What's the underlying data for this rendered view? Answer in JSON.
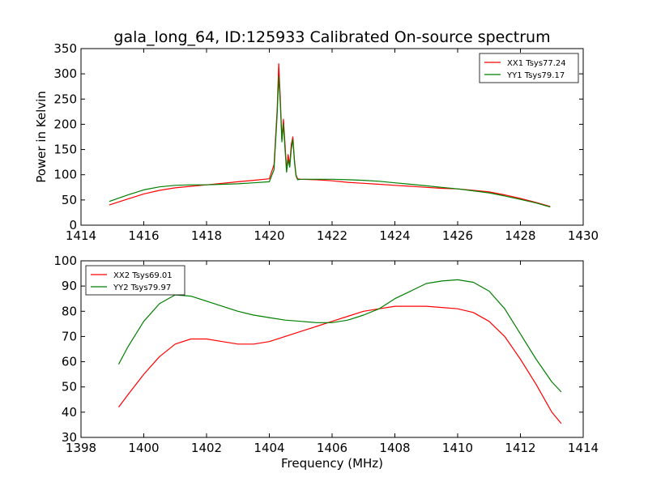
{
  "title": "gala_long_64, ID:125933 Calibrated On-source spectrum",
  "chart_data": [
    {
      "type": "line",
      "ylabel": "Power in Kelvin",
      "xlabel": "",
      "xlim": [
        1414,
        1430
      ],
      "ylim": [
        0,
        350
      ],
      "xticks": [
        "1414",
        "1416",
        "1418",
        "1420",
        "1422",
        "1424",
        "1426",
        "1428",
        "1430"
      ],
      "yticks": [
        "0",
        "50",
        "100",
        "150",
        "200",
        "250",
        "300",
        "350"
      ],
      "legend_position": "top-right",
      "series": [
        {
          "name": "XX1 Tsys77.24",
          "color": "#ff0000",
          "x": [
            1414.9,
            1415.5,
            1416.0,
            1416.5,
            1417.0,
            1417.5,
            1418.0,
            1418.5,
            1419.0,
            1419.5,
            1420.0,
            1420.15,
            1420.25,
            1420.3,
            1420.35,
            1420.4,
            1420.45,
            1420.5,
            1420.55,
            1420.6,
            1420.65,
            1420.7,
            1420.75,
            1420.8,
            1420.85,
            1420.9,
            1421.0,
            1421.5,
            1422.0,
            1422.5,
            1423.0,
            1423.5,
            1424.0,
            1424.5,
            1425.0,
            1425.5,
            1426.0,
            1426.5,
            1427.0,
            1427.5,
            1428.0,
            1428.5,
            1428.95
          ],
          "y": [
            40,
            52,
            62,
            69,
            74,
            77,
            80,
            83,
            86,
            89,
            92,
            120,
            230,
            320,
            250,
            170,
            210,
            160,
            110,
            140,
            120,
            160,
            175,
            130,
            100,
            92,
            91,
            90,
            88,
            85,
            83,
            81,
            79,
            77,
            75,
            73,
            72,
            69,
            66,
            60,
            53,
            45,
            37
          ]
        },
        {
          "name": "YY1 Tsys79.17",
          "color": "#007f00",
          "x": [
            1414.9,
            1415.5,
            1416.0,
            1416.5,
            1417.0,
            1417.5,
            1418.0,
            1418.5,
            1419.0,
            1419.5,
            1420.0,
            1420.15,
            1420.25,
            1420.3,
            1420.35,
            1420.4,
            1420.45,
            1420.5,
            1420.55,
            1420.6,
            1420.65,
            1420.7,
            1420.75,
            1420.8,
            1420.85,
            1420.9,
            1421.0,
            1421.5,
            1422.0,
            1422.5,
            1423.0,
            1423.5,
            1424.0,
            1424.5,
            1425.0,
            1425.5,
            1426.0,
            1426.5,
            1427.0,
            1427.5,
            1428.0,
            1428.5,
            1428.95
          ],
          "y": [
            47,
            60,
            70,
            76,
            79,
            80,
            80,
            81,
            82,
            84,
            86,
            110,
            220,
            295,
            240,
            165,
            200,
            150,
            105,
            130,
            115,
            150,
            170,
            125,
            98,
            90,
            91,
            91,
            91,
            90,
            89,
            87,
            84,
            81,
            78,
            75,
            72,
            68,
            64,
            58,
            51,
            44,
            36
          ]
        }
      ]
    },
    {
      "type": "line",
      "ylabel": "",
      "xlabel": "Frequency (MHz)",
      "xlim": [
        1398,
        1414
      ],
      "ylim": [
        30,
        100
      ],
      "xticks": [
        "1398",
        "1400",
        "1402",
        "1404",
        "1406",
        "1408",
        "1410",
        "1412",
        "1414"
      ],
      "yticks": [
        "30",
        "40",
        "50",
        "60",
        "70",
        "80",
        "90",
        "100"
      ],
      "legend_position": "top-left",
      "series": [
        {
          "name": "XX2 Tsys69.01",
          "color": "#ff0000",
          "x": [
            1399.2,
            1399.5,
            1400.0,
            1400.5,
            1401.0,
            1401.5,
            1402.0,
            1402.5,
            1403.0,
            1403.5,
            1404.0,
            1404.5,
            1405.0,
            1405.5,
            1406.0,
            1406.5,
            1407.0,
            1407.5,
            1408.0,
            1408.5,
            1409.0,
            1409.5,
            1410.0,
            1410.5,
            1411.0,
            1411.5,
            1412.0,
            1412.5,
            1413.0,
            1413.3
          ],
          "y": [
            42,
            47,
            55,
            62,
            67,
            69,
            69,
            68,
            67,
            67,
            68,
            70,
            72,
            74,
            76,
            78,
            80,
            81,
            82,
            82,
            82,
            81.5,
            81,
            79.5,
            76,
            70,
            61,
            51,
            40,
            35.5
          ]
        },
        {
          "name": "YY2 Tsys79.97",
          "color": "#007f00",
          "x": [
            1399.2,
            1399.5,
            1400.0,
            1400.5,
            1401.0,
            1401.5,
            1402.0,
            1402.5,
            1403.0,
            1403.5,
            1404.0,
            1404.5,
            1405.0,
            1405.5,
            1406.0,
            1406.5,
            1407.0,
            1407.5,
            1408.0,
            1408.5,
            1409.0,
            1409.5,
            1410.0,
            1410.5,
            1411.0,
            1411.5,
            1412.0,
            1412.5,
            1413.0,
            1413.3
          ],
          "y": [
            59,
            66,
            76,
            83,
            86.5,
            86,
            84,
            82,
            80,
            78.5,
            77.5,
            76.5,
            76,
            75.5,
            75.5,
            76.5,
            78.5,
            81,
            85,
            88,
            91,
            92,
            92.5,
            91.5,
            88,
            81,
            71,
            61,
            52,
            48
          ]
        }
      ]
    }
  ]
}
